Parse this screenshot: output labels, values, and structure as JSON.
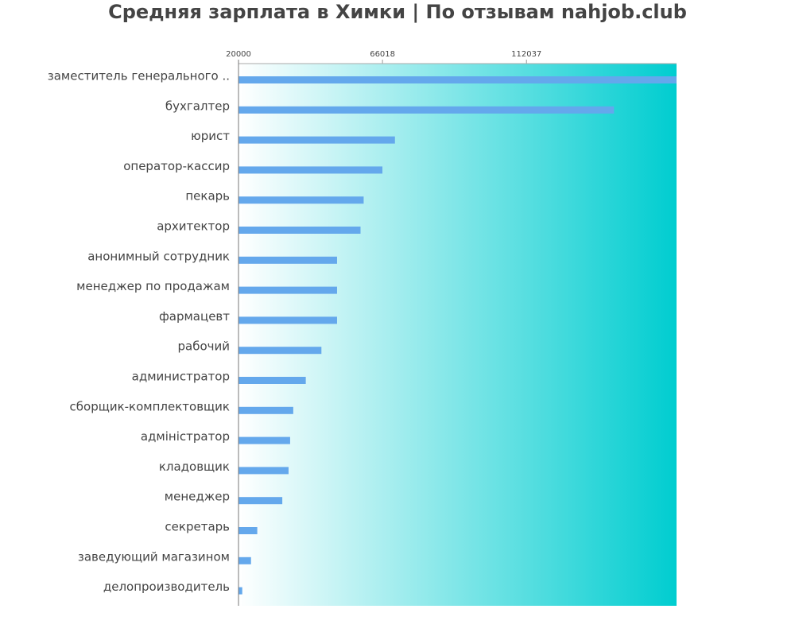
{
  "chart_data": {
    "type": "bar",
    "orientation": "horizontal",
    "title": "Средняя зарплата в Химки | По отзывам nahjob.club",
    "xlabel": "",
    "ylabel": "",
    "x_axis_position": "top",
    "xlim": [
      20000,
      160000
    ],
    "x_ticks": [
      20000,
      66018,
      112037
    ],
    "x_tick_labels": [
      "20000",
      "66018",
      "112037"
    ],
    "grid": false,
    "bar_color": "#64a8ec",
    "background_gradient": [
      "#ffffff",
      "#00cdd0"
    ],
    "categories": [
      "заместитель генерального ..",
      "бухгалтер",
      "юрист",
      "оператор-кассир",
      "пекарь",
      "архитектор",
      "анонимный сотрудник",
      "менеджер по продажам",
      "фармацевт",
      "рабочий",
      "администратор",
      "сборщик-комплектовщик",
      "адміністратор",
      "кладовщик",
      "менеджер",
      "секретарь",
      "заведующий магазином",
      "делопроизводитель"
    ],
    "values": [
      160000,
      140000,
      70000,
      66000,
      60000,
      59000,
      51500,
      51500,
      51500,
      46500,
      41500,
      37500,
      36500,
      36000,
      34000,
      26000,
      24000,
      21200
    ]
  }
}
